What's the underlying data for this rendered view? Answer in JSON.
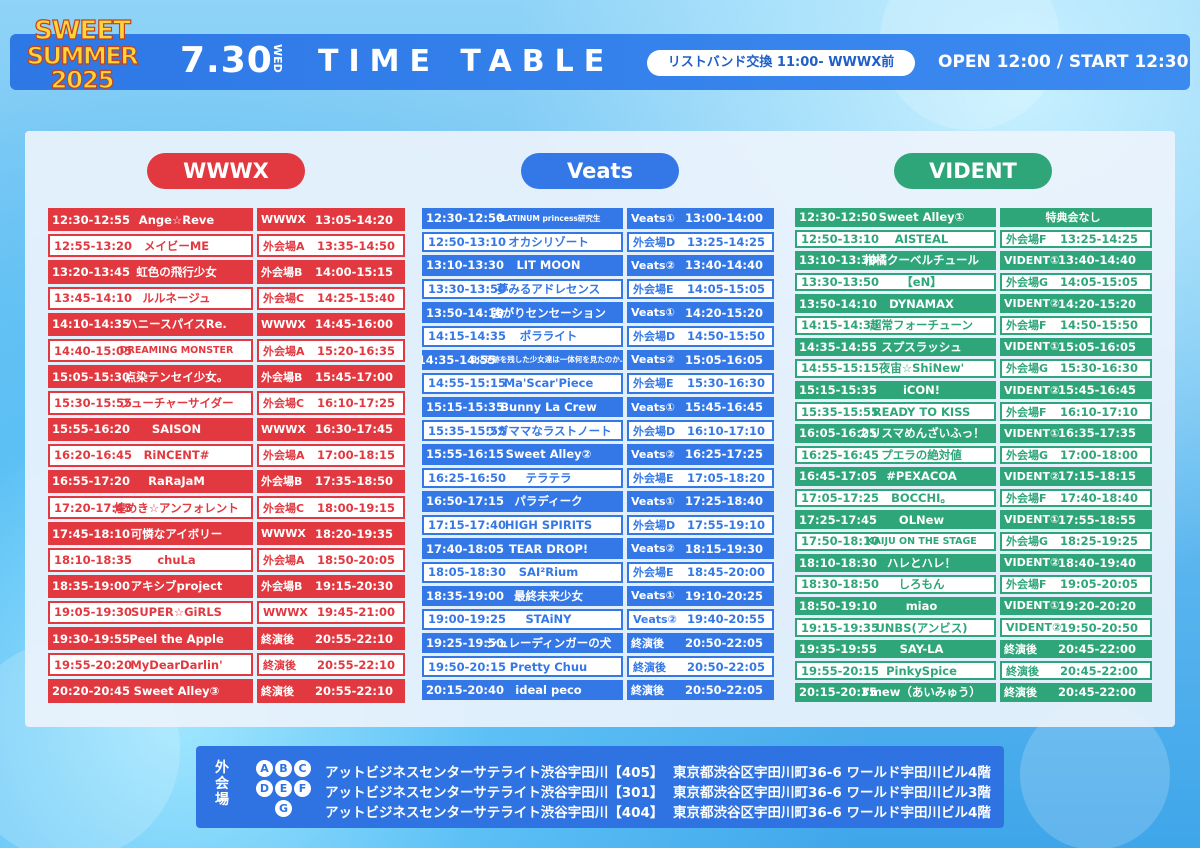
{
  "header": {
    "logo": {
      "line1": "SWEET",
      "line2": "SUMMER",
      "line3": "2025"
    },
    "date": "7.30",
    "weekday": "WED",
    "title": "TIME TABLE",
    "wristband": "リストバンド交換 11:00- WWWX前",
    "open_start": "OPEN 12:00 / START 12:30"
  },
  "colors": {
    "wwwx": "#e2383f",
    "veats": "#3478e8",
    "vident": "#2ea67a"
  },
  "columns": [
    {
      "name": "WWWX",
      "rows": [
        {
          "time": "12:30-12:55",
          "artist": "Ange☆Reve",
          "stage": "WWWX",
          "tokuten": "13:05-14:20"
        },
        {
          "time": "12:55-13:20",
          "artist": "メイビーME",
          "stage": "外会場A",
          "tokuten": "13:35-14:50"
        },
        {
          "time": "13:20-13:45",
          "artist": "虹色の飛行少女",
          "stage": "外会場B",
          "tokuten": "14:00-15:15"
        },
        {
          "time": "13:45-14:10",
          "artist": "ルルネージュ",
          "stage": "外会場C",
          "tokuten": "14:25-15:40"
        },
        {
          "time": "14:10-14:35",
          "artist": "ハニースパイスRe.",
          "stage": "WWWX",
          "tokuten": "14:45-16:00"
        },
        {
          "time": "14:40-15:05",
          "artist": "DREAMING MONSTER",
          "stage": "外会場A",
          "tokuten": "15:20-16:35"
        },
        {
          "time": "15:05-15:30",
          "artist": "点染テンセイ少女。",
          "stage": "外会場B",
          "tokuten": "15:45-17:00"
        },
        {
          "time": "15:30-15:55",
          "artist": "フューチャーサイダー",
          "stage": "外会場C",
          "tokuten": "16:10-17:25"
        },
        {
          "time": "15:55-16:20",
          "artist": "SAISON",
          "stage": "WWWX",
          "tokuten": "16:30-17:45"
        },
        {
          "time": "16:20-16:45",
          "artist": "RiNCENT#",
          "stage": "外会場A",
          "tokuten": "17:00-18:15"
        },
        {
          "time": "16:55-17:20",
          "artist": "RaRaJaM",
          "stage": "外会場B",
          "tokuten": "17:35-18:50"
        },
        {
          "time": "17:20-17:45",
          "artist": "煌めき☆アンフォレント",
          "stage": "外会場C",
          "tokuten": "18:00-19:15"
        },
        {
          "time": "17:45-18:10",
          "artist": "可憐なアイボリー",
          "stage": "WWWX",
          "tokuten": "18:20-19:35"
        },
        {
          "time": "18:10-18:35",
          "artist": "chuLa",
          "stage": "外会場A",
          "tokuten": "18:50-20:05"
        },
        {
          "time": "18:35-19:00",
          "artist": "アキシブproject",
          "stage": "外会場B",
          "tokuten": "19:15-20:30"
        },
        {
          "time": "19:05-19:30",
          "artist": "SUPER☆GiRLS",
          "stage": "WWWX",
          "tokuten": "19:45-21:00"
        },
        {
          "time": "19:30-19:55",
          "artist": "Peel the Apple",
          "stage": "終演後",
          "tokuten": "20:55-22:10"
        },
        {
          "time": "19:55-20:20",
          "artist": "MyDearDarlin'",
          "stage": "終演後",
          "tokuten": "20:55-22:10"
        },
        {
          "time": "20:20-20:45",
          "artist": "Sweet Alley③",
          "stage": "終演後",
          "tokuten": "20:55-22:10"
        }
      ]
    },
    {
      "name": "Veats",
      "rows": [
        {
          "time": "12:30-12:50",
          "artist": "PLATINUM princess研究生",
          "stage": "Veats①",
          "tokuten": "13:00-14:00"
        },
        {
          "time": "12:50-13:10",
          "artist": "オカシリゾート",
          "stage": "外会場D",
          "tokuten": "13:25-14:25"
        },
        {
          "time": "13:10-13:30",
          "artist": "LIT MOON",
          "stage": "Veats②",
          "tokuten": "13:40-14:40"
        },
        {
          "time": "13:30-13:50",
          "artist": "夢みるアドレセンス",
          "stage": "外会場E",
          "tokuten": "14:05-15:05"
        },
        {
          "time": "13:50-14:10",
          "artist": "強がりセンセーション",
          "stage": "Veats①",
          "tokuten": "14:20-15:20"
        },
        {
          "time": "14:15-14:35",
          "artist": "ポラライト",
          "stage": "外会場D",
          "tokuten": "14:50-15:50"
        },
        {
          "time": "14:35-14:55",
          "artist": "月に足跡を残した少女達は一体何を見たのか…",
          "stage": "Veats②",
          "tokuten": "15:05-16:05"
        },
        {
          "time": "14:55-15:15",
          "artist": "Ma'Scar'Piece",
          "stage": "外会場E",
          "tokuten": "15:30-16:30"
        },
        {
          "time": "15:15-15:35",
          "artist": "Bunny La Crew",
          "stage": "Veats①",
          "tokuten": "15:45-16:45"
        },
        {
          "time": "15:35-15:55",
          "artist": "ワガママなラストノート",
          "stage": "外会場D",
          "tokuten": "16:10-17:10"
        },
        {
          "time": "15:55-16:15",
          "artist": "Sweet Alley②",
          "stage": "Veats②",
          "tokuten": "16:25-17:25"
        },
        {
          "time": "16:25-16:50",
          "artist": "テラテラ",
          "stage": "外会場E",
          "tokuten": "17:05-18:20"
        },
        {
          "time": "16:50-17:15",
          "artist": "パラディーク",
          "stage": "Veats①",
          "tokuten": "17:25-18:40"
        },
        {
          "time": "17:15-17:40",
          "artist": "HIGH SPIRITS",
          "stage": "外会場D",
          "tokuten": "17:55-19:10"
        },
        {
          "time": "17:40-18:05",
          "artist": "TEAR DROP!",
          "stage": "Veats②",
          "tokuten": "18:15-19:30"
        },
        {
          "time": "18:05-18:30",
          "artist": "SAI²Rium",
          "stage": "外会場E",
          "tokuten": "18:45-20:00"
        },
        {
          "time": "18:35-19:00",
          "artist": "最終未来少女",
          "stage": "Veats①",
          "tokuten": "19:10-20:25"
        },
        {
          "time": "19:00-19:25",
          "artist": "STAiNY",
          "stage": "Veats②",
          "tokuten": "19:40-20:55"
        },
        {
          "time": "19:25-19:50",
          "artist": "シュレーディンガーの犬",
          "stage": "終演後",
          "tokuten": "20:50-22:05"
        },
        {
          "time": "19:50-20:15",
          "artist": "Pretty Chuu",
          "stage": "終演後",
          "tokuten": "20:50-22:05"
        },
        {
          "time": "20:15-20:40",
          "artist": "ideal peco",
          "stage": "終演後",
          "tokuten": "20:50-22:05"
        }
      ]
    },
    {
      "name": "VIDENT",
      "rows": [
        {
          "time": "12:30-12:50",
          "artist": "Sweet Alley①",
          "stage": "特典会なし",
          "tokuten": ""
        },
        {
          "time": "12:50-13:10",
          "artist": "AISTEAL",
          "stage": "外会場F",
          "tokuten": "13:25-14:25"
        },
        {
          "time": "13:10-13:30",
          "artist": "柑橘クーベルチュール",
          "stage": "VIDENT①",
          "tokuten": "13:40-14:40"
        },
        {
          "time": "13:30-13:50",
          "artist": "【eN】",
          "stage": "外会場G",
          "tokuten": "14:05-15:05"
        },
        {
          "time": "13:50-14:10",
          "artist": "DYNAMAX",
          "stage": "VIDENT②",
          "tokuten": "14:20-15:20"
        },
        {
          "time": "14:15-14:35",
          "artist": "超常フォーチューン",
          "stage": "外会場F",
          "tokuten": "14:50-15:50"
        },
        {
          "time": "14:35-14:55",
          "artist": "スプスラッシュ",
          "stage": "VIDENT①",
          "tokuten": "15:05-16:05"
        },
        {
          "time": "14:55-15:15",
          "artist": "夜宙☆ShiNew'",
          "stage": "外会場G",
          "tokuten": "15:30-16:30"
        },
        {
          "time": "15:15-15:35",
          "artist": "iCON!",
          "stage": "VIDENT②",
          "tokuten": "15:45-16:45"
        },
        {
          "time": "15:35-15:55",
          "artist": "READY TO KISS",
          "stage": "外会場F",
          "tokuten": "16:10-17:10"
        },
        {
          "time": "16:05-16:25",
          "artist": "カリスマめんざいふっ！",
          "stage": "VIDENT①",
          "tokuten": "16:35-17:35"
        },
        {
          "time": "16:25-16:45",
          "artist": "プエラの絶対値",
          "stage": "外会場G",
          "tokuten": "17:00-18:00"
        },
        {
          "time": "16:45-17:05",
          "artist": "#PEXACOA",
          "stage": "VIDENT②",
          "tokuten": "17:15-18:15"
        },
        {
          "time": "17:05-17:25",
          "artist": "BOCCHI。",
          "stage": "外会場F",
          "tokuten": "17:40-18:40"
        },
        {
          "time": "17:25-17:45",
          "artist": "OLNew",
          "stage": "VIDENT①",
          "tokuten": "17:55-18:55"
        },
        {
          "time": "17:50-18:10",
          "artist": "KAIJU ON THE STAGE",
          "stage": "外会場G",
          "tokuten": "18:25-19:25"
        },
        {
          "time": "18:10-18:30",
          "artist": "ハレとハレ！",
          "stage": "VIDENT②",
          "tokuten": "18:40-19:40"
        },
        {
          "time": "18:30-18:50",
          "artist": "しろもん",
          "stage": "外会場F",
          "tokuten": "19:05-20:05"
        },
        {
          "time": "18:50-19:10",
          "artist": "miao",
          "stage": "VIDENT①",
          "tokuten": "19:20-20:20"
        },
        {
          "time": "19:15-19:35",
          "artist": "UNBS(アンビス)",
          "stage": "VIDENT②",
          "tokuten": "19:50-20:50"
        },
        {
          "time": "19:35-19:55",
          "artist": "SAY-LA",
          "stage": "終演後",
          "tokuten": "20:45-22:00"
        },
        {
          "time": "19:55-20:15",
          "artist": "PinkySpice",
          "stage": "終演後",
          "tokuten": "20:45-22:00"
        },
        {
          "time": "20:15-20:35",
          "artist": "I'mew（あいみゅう）",
          "stage": "終演後",
          "tokuten": "20:45-22:00"
        }
      ]
    }
  ],
  "footer": {
    "tag": "外会場",
    "letters": [
      "A",
      "B",
      "C",
      "D",
      "E",
      "F",
      "G"
    ],
    "venues": [
      {
        "name": "アットビジネスセンターサテライト渋谷宇田川【405】",
        "address": "東京都渋谷区宇田川町36-6 ワールド宇田川ビル4階"
      },
      {
        "name": "アットビジネスセンターサテライト渋谷宇田川【301】",
        "address": "東京都渋谷区宇田川町36-6 ワールド宇田川ビル3階"
      },
      {
        "name": "アットビジネスセンターサテライト渋谷宇田川【404】",
        "address": "東京都渋谷区宇田川町36-6 ワールド宇田川ビル4階"
      }
    ]
  }
}
